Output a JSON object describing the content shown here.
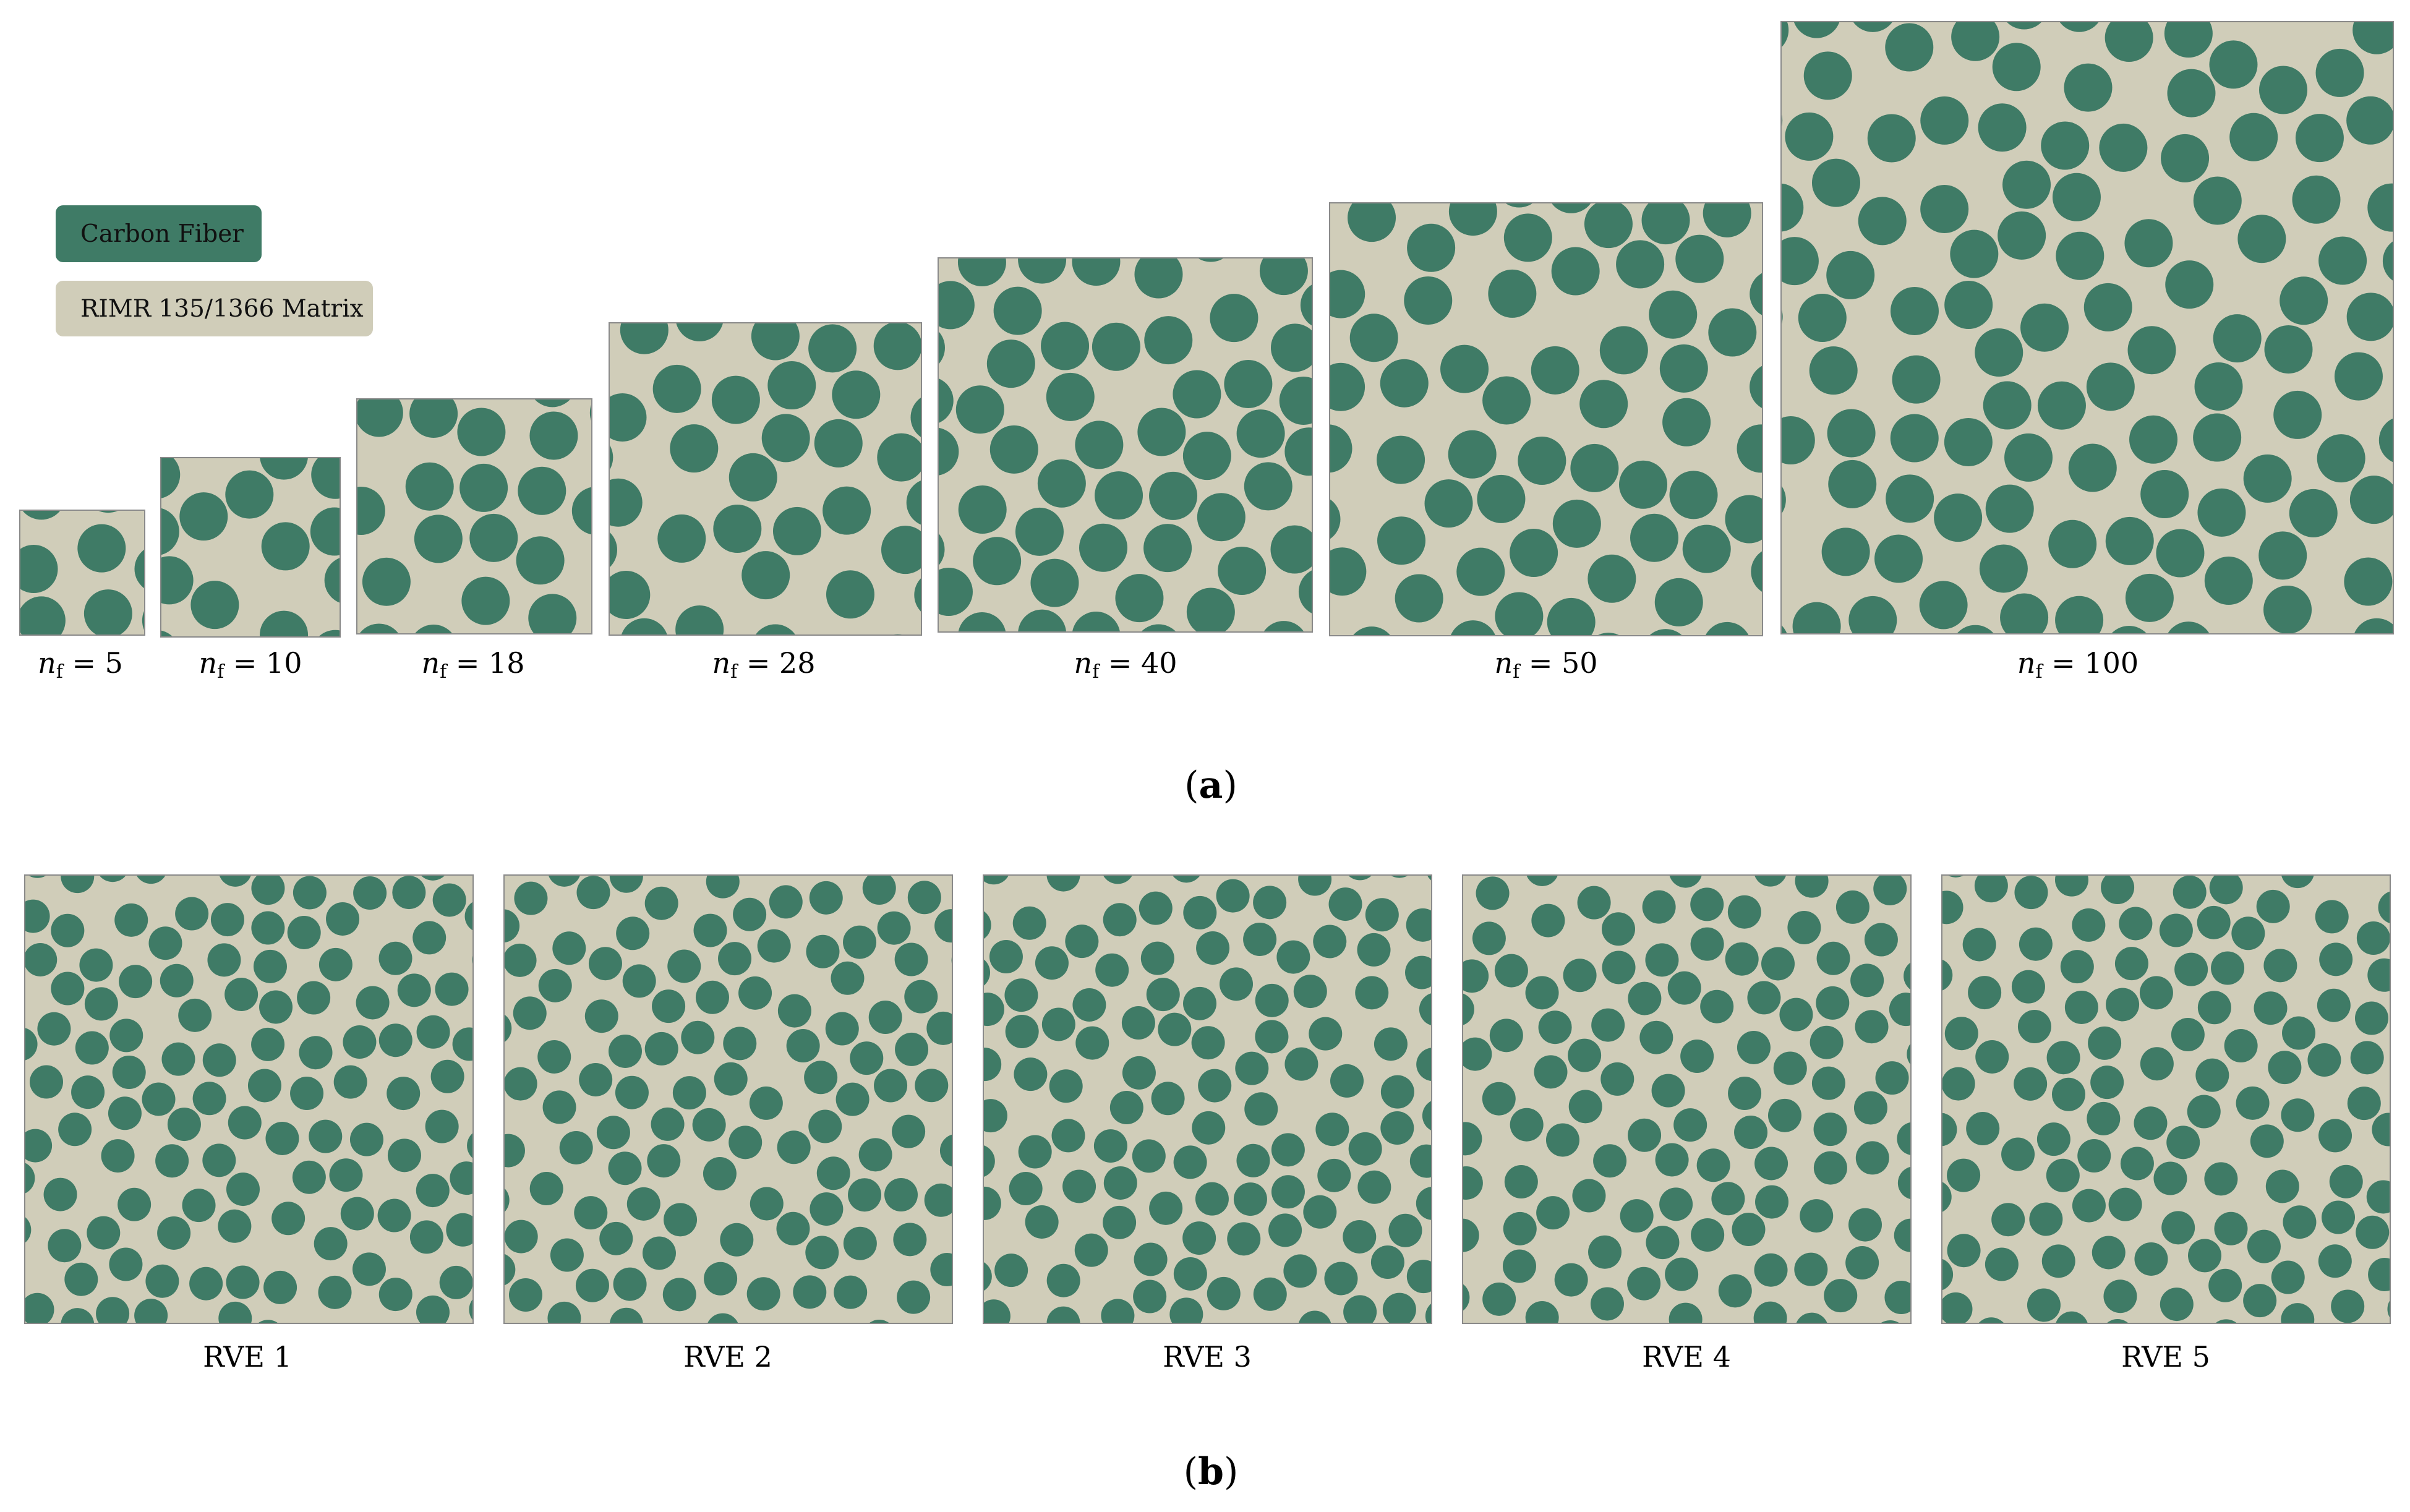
{
  "legend": {
    "fiber_label": "Carbon Fiber",
    "matrix_label": "RIMR 135/1366 Matrix",
    "fiber_color": "#3f7b66",
    "matrix_color": "#d0cdb9"
  },
  "panel_a": {
    "caption_letter": "a",
    "cells": [
      {
        "n_symbol": "n",
        "n_sub": "f",
        "value": "= 5"
      },
      {
        "n_symbol": "n",
        "n_sub": "f",
        "value": "= 10"
      },
      {
        "n_symbol": "n",
        "n_sub": "f",
        "value": "= 18"
      },
      {
        "n_symbol": "n",
        "n_sub": "f",
        "value": "= 28"
      },
      {
        "n_symbol": "n",
        "n_sub": "f",
        "value": "= 40"
      },
      {
        "n_symbol": "n",
        "n_sub": "f",
        "value": "= 50"
      },
      {
        "n_symbol": "n",
        "n_sub": "f",
        "value": "= 100"
      }
    ]
  },
  "panel_b": {
    "caption_letter": "b",
    "cells": [
      {
        "label": "RVE 1"
      },
      {
        "label": "RVE 2"
      },
      {
        "label": "RVE 3"
      },
      {
        "label": "RVE 4"
      },
      {
        "label": "RVE 5"
      }
    ]
  }
}
